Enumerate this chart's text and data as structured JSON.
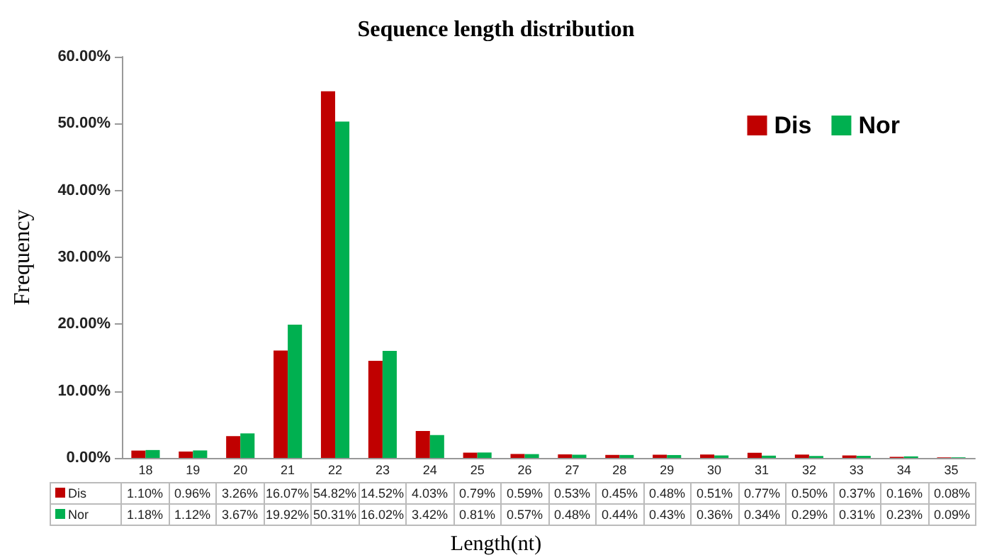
{
  "chart_data": {
    "type": "bar",
    "title": "Sequence length distribution",
    "xlabel": "Length(nt)",
    "ylabel": "Frequency",
    "categories": [
      "18",
      "19",
      "20",
      "21",
      "22",
      "23",
      "24",
      "25",
      "26",
      "27",
      "28",
      "29",
      "30",
      "31",
      "32",
      "33",
      "34",
      "35"
    ],
    "series": [
      {
        "name": "Dis",
        "color": "#c00000",
        "values": [
          1.1,
          0.96,
          3.26,
          16.07,
          54.82,
          14.52,
          4.03,
          0.79,
          0.59,
          0.53,
          0.45,
          0.48,
          0.51,
          0.77,
          0.5,
          0.37,
          0.16,
          0.08
        ],
        "value_labels": [
          "1.10%",
          "0.96%",
          "3.26%",
          "16.07%",
          "54.82%",
          "14.52%",
          "4.03%",
          "0.79%",
          "0.59%",
          "0.53%",
          "0.45%",
          "0.48%",
          "0.51%",
          "0.77%",
          "0.50%",
          "0.37%",
          "0.16%",
          "0.08%"
        ]
      },
      {
        "name": "Nor",
        "color": "#00b050",
        "values": [
          1.18,
          1.12,
          3.67,
          19.92,
          50.31,
          16.02,
          3.42,
          0.81,
          0.57,
          0.48,
          0.44,
          0.43,
          0.36,
          0.34,
          0.29,
          0.31,
          0.23,
          0.09
        ],
        "value_labels": [
          "1.18%",
          "1.12%",
          "3.67%",
          "19.92%",
          "50.31%",
          "16.02%",
          "3.42%",
          "0.81%",
          "0.57%",
          "0.48%",
          "0.44%",
          "0.43%",
          "0.36%",
          "0.34%",
          "0.29%",
          "0.31%",
          "0.23%",
          "0.09%"
        ]
      }
    ],
    "ylim": [
      0,
      60
    ],
    "yticks": [
      {
        "value": 0,
        "label": "0.00%"
      },
      {
        "value": 10,
        "label": "10.00%"
      },
      {
        "value": 20,
        "label": "20.00%"
      },
      {
        "value": 30,
        "label": "30.00%"
      },
      {
        "value": 40,
        "label": "40.00%"
      },
      {
        "value": 50,
        "label": "50.00%"
      },
      {
        "value": 60,
        "label": "60.00%"
      }
    ],
    "grid": false,
    "legend": "top right"
  }
}
